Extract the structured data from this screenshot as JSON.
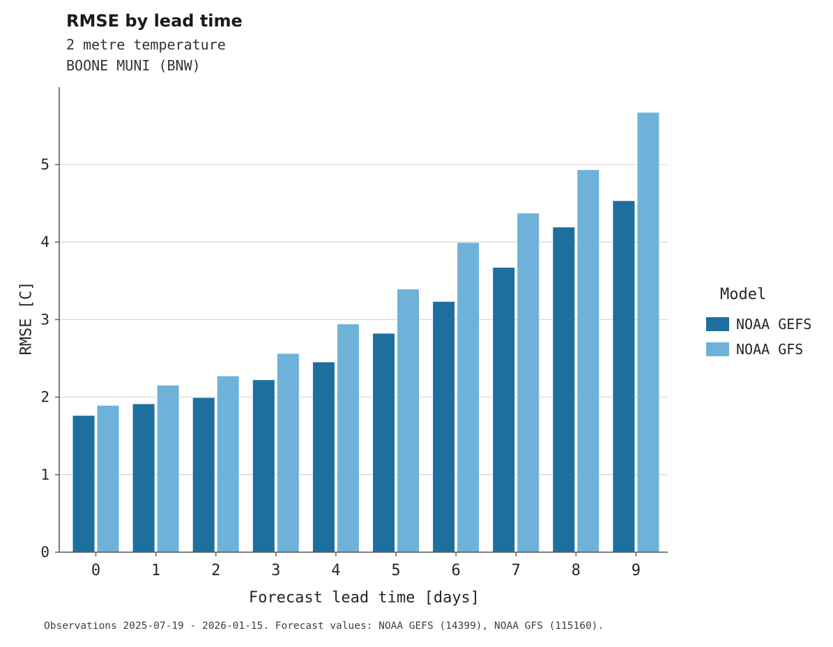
{
  "header": {
    "title": "RMSE by lead time",
    "subtitle1": "2 metre temperature",
    "subtitle2": "BOONE MUNI (BNW)"
  },
  "caption": "Observations 2025-07-19 - 2026-01-15. Forecast values: NOAA GEFS (14399), NOAA GFS (115160).",
  "legend": {
    "title": "Model"
  },
  "colors": {
    "gefs": "#1d6f9e",
    "gfs": "#6fb2d9",
    "gridline": "#d9d9d9",
    "axis": "#595959",
    "tick_text": "#262626"
  },
  "chart_data": {
    "type": "bar",
    "title": "RMSE by lead time",
    "subtitle": "2 metre temperature — BOONE MUNI (BNW)",
    "xlabel": "Forecast lead time [days]",
    "ylabel": "RMSE [C]",
    "categories": [
      "0",
      "1",
      "2",
      "3",
      "4",
      "5",
      "6",
      "7",
      "8",
      "9"
    ],
    "series": [
      {
        "name": "NOAA GEFS",
        "color": "#1d6f9e",
        "values": [
          1.76,
          1.91,
          1.99,
          2.22,
          2.45,
          2.82,
          3.23,
          3.67,
          4.19,
          4.53
        ]
      },
      {
        "name": "NOAA GFS",
        "color": "#6fb2d9",
        "values": [
          1.89,
          2.15,
          2.27,
          2.56,
          2.94,
          3.39,
          3.99,
          4.37,
          4.93,
          5.67
        ]
      }
    ],
    "ylim": [
      0,
      5.85
    ],
    "yticks": [
      0,
      1,
      2,
      3,
      4,
      5
    ],
    "grid": "horizontal",
    "legend_position": "right",
    "legend_title": "Model"
  }
}
